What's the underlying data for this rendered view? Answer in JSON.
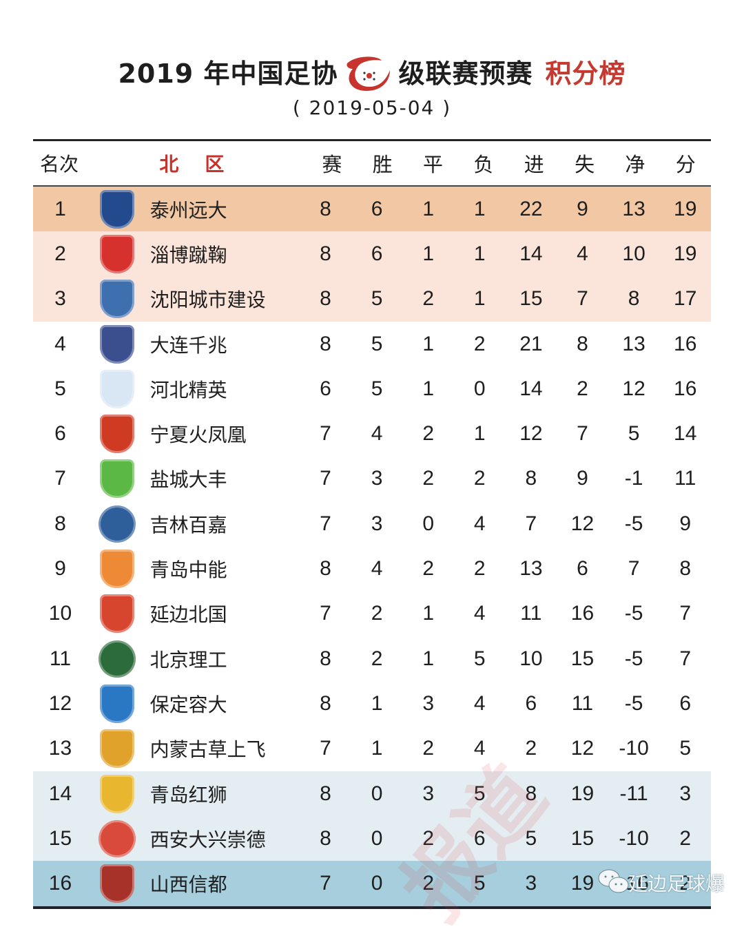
{
  "header": {
    "title_left": "2019 年中国足协",
    "title_right": "级联赛预赛",
    "title_highlight": "积分榜",
    "date": "( 2019-05-04 )"
  },
  "columns": {
    "rank": "名次",
    "zone": "北区",
    "played": "赛",
    "won": "胜",
    "drawn": "平",
    "lost": "负",
    "gf": "进",
    "ga": "失",
    "gd": "净",
    "pts": "分"
  },
  "colors": {
    "row_first": "#f2c7a3",
    "row_top": "#fbe5da",
    "row_default": "#ffffff",
    "row_danger": "#e4edf2",
    "row_last": "#a6cedc",
    "accent_red": "#c43a31"
  },
  "rows": [
    {
      "rank": "1",
      "team": "泰州远大",
      "p": "8",
      "w": "6",
      "d": "1",
      "l": "1",
      "gf": "22",
      "ga": "9",
      "gd": "13",
      "pts": "19",
      "badge": "#234a8c",
      "shape": "shield",
      "style": "first"
    },
    {
      "rank": "2",
      "team": "淄博蹴鞠",
      "p": "8",
      "w": "6",
      "d": "1",
      "l": "1",
      "gf": "14",
      "ga": "4",
      "gd": "10",
      "pts": "19",
      "badge": "#d6312d",
      "shape": "shield",
      "style": "top"
    },
    {
      "rank": "3",
      "team": "沈阳城市建设",
      "p": "8",
      "w": "5",
      "d": "2",
      "l": "1",
      "gf": "15",
      "ga": "7",
      "gd": "8",
      "pts": "17",
      "badge": "#3e6fae",
      "shape": "shield",
      "style": "top"
    },
    {
      "rank": "4",
      "team": "大连千兆",
      "p": "8",
      "w": "5",
      "d": "1",
      "l": "2",
      "gf": "21",
      "ga": "8",
      "gd": "13",
      "pts": "16",
      "badge": "#3b4f8f",
      "shape": "shield",
      "style": "default"
    },
    {
      "rank": "5",
      "team": "河北精英",
      "p": "6",
      "w": "5",
      "d": "1",
      "l": "0",
      "gf": "14",
      "ga": "2",
      "gd": "12",
      "pts": "16",
      "badge": "#d9e6f4",
      "shape": "shield",
      "style": "default"
    },
    {
      "rank": "6",
      "team": "宁夏火凤凰",
      "p": "7",
      "w": "4",
      "d": "2",
      "l": "1",
      "gf": "12",
      "ga": "7",
      "gd": "5",
      "pts": "14",
      "badge": "#cf3a22",
      "shape": "shield",
      "style": "default"
    },
    {
      "rank": "7",
      "team": "盐城大丰",
      "p": "7",
      "w": "3",
      "d": "2",
      "l": "2",
      "gf": "8",
      "ga": "9",
      "gd": "-1",
      "pts": "11",
      "badge": "#5cb844",
      "shape": "shield",
      "style": "default"
    },
    {
      "rank": "8",
      "team": "吉林百嘉",
      "p": "7",
      "w": "3",
      "d": "0",
      "l": "4",
      "gf": "7",
      "ga": "12",
      "gd": "-5",
      "pts": "9",
      "badge": "#2f5f9a",
      "shape": "circle",
      "style": "default"
    },
    {
      "rank": "9",
      "team": "青岛中能",
      "p": "8",
      "w": "4",
      "d": "2",
      "l": "2",
      "gf": "13",
      "ga": "6",
      "gd": "7",
      "pts": "8",
      "badge": "#ee8a35",
      "shape": "shield",
      "style": "default"
    },
    {
      "rank": "10",
      "team": "延边北国",
      "p": "7",
      "w": "2",
      "d": "1",
      "l": "4",
      "gf": "11",
      "ga": "16",
      "gd": "-5",
      "pts": "7",
      "badge": "#d8452f",
      "shape": "shield",
      "style": "default"
    },
    {
      "rank": "11",
      "team": "北京理工",
      "p": "8",
      "w": "2",
      "d": "1",
      "l": "5",
      "gf": "10",
      "ga": "15",
      "gd": "-5",
      "pts": "7",
      "badge": "#2c6b3a",
      "shape": "circle",
      "style": "default"
    },
    {
      "rank": "12",
      "team": "保定容大",
      "p": "8",
      "w": "1",
      "d": "3",
      "l": "4",
      "gf": "6",
      "ga": "11",
      "gd": "-5",
      "pts": "6",
      "badge": "#2a78c4",
      "shape": "shield",
      "style": "default"
    },
    {
      "rank": "13",
      "team": "内蒙古草上飞",
      "p": "7",
      "w": "1",
      "d": "2",
      "l": "4",
      "gf": "2",
      "ga": "12",
      "gd": "-10",
      "pts": "5",
      "badge": "#e0a22a",
      "shape": "shield",
      "style": "default"
    },
    {
      "rank": "14",
      "team": "青岛红狮",
      "p": "8",
      "w": "0",
      "d": "3",
      "l": "5",
      "gf": "8",
      "ga": "19",
      "gd": "-11",
      "pts": "3",
      "badge": "#e9b62f",
      "shape": "shield",
      "style": "danger"
    },
    {
      "rank": "15",
      "team": "西安大兴崇德",
      "p": "8",
      "w": "0",
      "d": "2",
      "l": "6",
      "gf": "5",
      "ga": "15",
      "gd": "-10",
      "pts": "2",
      "badge": "#d94a3a",
      "shape": "circle",
      "style": "danger"
    },
    {
      "rank": "16",
      "team": "山西信都",
      "p": "7",
      "w": "0",
      "d": "2",
      "l": "5",
      "gf": "3",
      "ga": "19",
      "gd": "-16",
      "pts": "2",
      "badge": "#a6322a",
      "shape": "shield",
      "style": "last"
    }
  ],
  "watermark": {
    "account": "延边足球爆",
    "stamp": "报道"
  }
}
